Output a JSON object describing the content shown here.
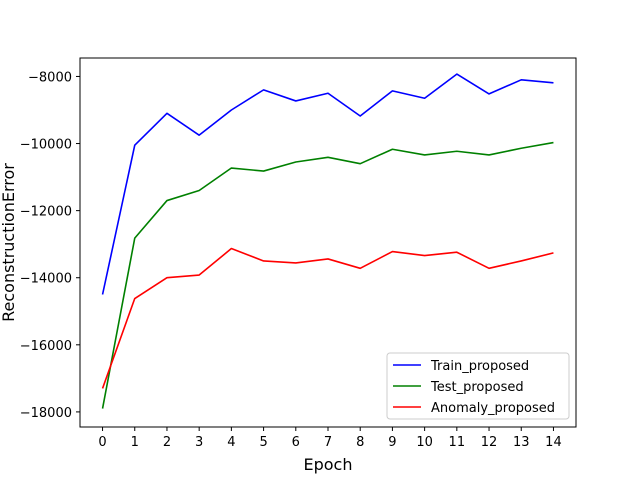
{
  "chart_data": {
    "type": "line",
    "title": "",
    "xlabel": "Epoch",
    "ylabel": "ReconstructionError",
    "x": [
      0,
      1,
      2,
      3,
      4,
      5,
      6,
      7,
      8,
      9,
      10,
      11,
      12,
      13,
      14
    ],
    "xticks": [
      "0",
      "1",
      "2",
      "3",
      "4",
      "5",
      "6",
      "7",
      "8",
      "9",
      "10",
      "11",
      "12",
      "13",
      "14"
    ],
    "xlim": [
      -0.7,
      14.7
    ],
    "yticks": [
      -18000,
      -16000,
      -14000,
      -12000,
      -10000,
      -8000
    ],
    "ytick_labels": [
      "−18000",
      "−16000",
      "−14000",
      "−12000",
      "−10000",
      "−8000"
    ],
    "ylim": [
      -18450,
      -7450
    ],
    "grid": false,
    "legend_position": "lower-right",
    "series": [
      {
        "name": "Train_proposed",
        "color": "#0000ff",
        "values": [
          -14500,
          -10050,
          -9100,
          -9750,
          -9000,
          -8400,
          -8730,
          -8500,
          -9180,
          -8430,
          -8650,
          -7930,
          -8520,
          -8100,
          -8190
        ]
      },
      {
        "name": "Test_proposed",
        "color": "#008000",
        "values": [
          -17900,
          -12820,
          -11700,
          -11400,
          -10730,
          -10820,
          -10550,
          -10410,
          -10600,
          -10170,
          -10340,
          -10230,
          -10340,
          -10140,
          -9970
        ]
      },
      {
        "name": "Anomaly_proposed",
        "color": "#ff0000",
        "values": [
          -17300,
          -14620,
          -14000,
          -13920,
          -13130,
          -13500,
          -13560,
          -13440,
          -13720,
          -13220,
          -13340,
          -13240,
          -13720,
          -13500,
          -13260
        ]
      }
    ]
  }
}
